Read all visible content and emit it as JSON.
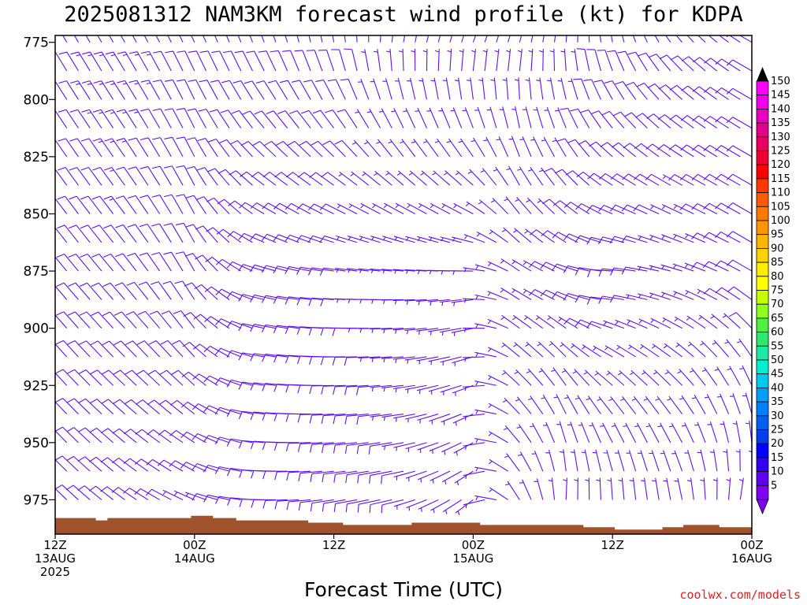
{
  "chart_data": {
    "type": "wind_barb_profile",
    "title": "2025081312 NAM3KM forecast wind profile (kt) for KDPA",
    "xlabel": "Forecast Time (UTC)",
    "credit": "coolwx.com/models",
    "y_ticks": [
      775,
      800,
      825,
      850,
      875,
      900,
      925,
      950,
      975
    ],
    "ylim": [
      772,
      990
    ],
    "x_ticks": [
      {
        "hour": 0,
        "line1": "12Z",
        "line2": "13AUG",
        "line3": "2025"
      },
      {
        "hour": 12,
        "line1": "00Z",
        "line2": "14AUG",
        "line3": ""
      },
      {
        "hour": 24,
        "line1": "12Z",
        "line2": "",
        "line3": ""
      },
      {
        "hour": 36,
        "line1": "00Z",
        "line2": "15AUG",
        "line3": ""
      },
      {
        "hour": 48,
        "line1": "12Z",
        "line2": "",
        "line3": ""
      },
      {
        "hour": 60,
        "line1": "00Z",
        "line2": "16AUG",
        "line3": ""
      }
    ],
    "xlim": [
      0,
      60
    ],
    "barb_color": "#6010f0",
    "surface_color": "#a0522d",
    "surface_pressure_mb": [
      {
        "hour": 0,
        "mb": 983
      },
      {
        "hour": 3,
        "mb": 983
      },
      {
        "hour": 3.5,
        "mb": 984
      },
      {
        "hour": 4.5,
        "mb": 983
      },
      {
        "hour": 11.5,
        "mb": 983
      },
      {
        "hour": 11.7,
        "mb": 982
      },
      {
        "hour": 13.6,
        "mb": 983
      },
      {
        "hour": 15.6,
        "mb": 984
      },
      {
        "hour": 21.8,
        "mb": 985
      },
      {
        "hour": 24.8,
        "mb": 986
      },
      {
        "hour": 30.7,
        "mb": 985
      },
      {
        "hour": 36.6,
        "mb": 986
      },
      {
        "hour": 45.5,
        "mb": 987
      },
      {
        "hour": 48.2,
        "mb": 988
      },
      {
        "hour": 52.3,
        "mb": 987
      },
      {
        "hour": 54.1,
        "mb": 986
      },
      {
        "hour": 57.2,
        "mb": 987
      },
      {
        "hour": 60,
        "mb": 987
      }
    ],
    "wind_keyframes": [
      {
        "hour": 0,
        "low": {
          "dir": 315,
          "spd": 8
        },
        "mid": {
          "dir": 320,
          "spd": 10
        },
        "high": {
          "dir": 330,
          "spd": 12
        }
      },
      {
        "hour": 6,
        "low": {
          "dir": 305,
          "spd": 8
        },
        "mid": {
          "dir": 320,
          "spd": 12
        },
        "high": {
          "dir": 330,
          "spd": 14
        }
      },
      {
        "hour": 12,
        "low": {
          "dir": 290,
          "spd": 7
        },
        "mid": {
          "dir": 330,
          "spd": 10
        },
        "high": {
          "dir": 335,
          "spd": 12
        }
      },
      {
        "hour": 18,
        "low": {
          "dir": 270,
          "spd": 8
        },
        "mid": {
          "dir": 285,
          "spd": 9
        },
        "high": {
          "dir": 340,
          "spd": 10
        }
      },
      {
        "hour": 24,
        "low": {
          "dir": 260,
          "spd": 10
        },
        "mid": {
          "dir": 275,
          "spd": 8
        },
        "high": {
          "dir": 350,
          "spd": 8
        }
      },
      {
        "hour": 30,
        "low": {
          "dir": 255,
          "spd": 8
        },
        "mid": {
          "dir": 270,
          "spd": 6
        },
        "high": {
          "dir": 10,
          "spd": 7
        }
      },
      {
        "hour": 36,
        "low": {
          "dir": 230,
          "spd": 5
        },
        "mid": {
          "dir": 265,
          "spd": 6
        },
        "high": {
          "dir": 20,
          "spd": 6
        }
      },
      {
        "hour": 40,
        "low": {
          "dir": 330,
          "spd": 6
        },
        "mid": {
          "dir": 300,
          "spd": 7
        },
        "high": {
          "dir": 15,
          "spd": 6
        }
      },
      {
        "hour": 44,
        "low": {
          "dir": 10,
          "spd": 5
        },
        "mid": {
          "dir": 290,
          "spd": 8
        },
        "high": {
          "dir": 5,
          "spd": 7
        }
      },
      {
        "hour": 48,
        "low": {
          "dir": 5,
          "spd": 6
        },
        "mid": {
          "dir": 270,
          "spd": 8
        },
        "high": {
          "dir": 350,
          "spd": 8
        }
      },
      {
        "hour": 54,
        "low": {
          "dir": 355,
          "spd": 6
        },
        "mid": {
          "dir": 285,
          "spd": 7
        },
        "high": {
          "dir": 320,
          "spd": 8
        }
      },
      {
        "hour": 60,
        "low": {
          "dir": 20,
          "spd": 6
        },
        "mid": {
          "dir": 300,
          "spd": 8
        },
        "high": {
          "dir": 300,
          "spd": 8
        }
      }
    ],
    "colorbar": {
      "labels": [
        150,
        145,
        140,
        135,
        130,
        125,
        120,
        115,
        110,
        105,
        100,
        95,
        90,
        85,
        80,
        75,
        70,
        65,
        60,
        55,
        50,
        45,
        40,
        35,
        30,
        25,
        20,
        15,
        10,
        5
      ],
      "colors": [
        "#ff00ff",
        "#f000e8",
        "#e800c0",
        "#e0008c",
        "#e80060",
        "#f00030",
        "#ff0000",
        "#ff3800",
        "#ff5a00",
        "#ff7800",
        "#ff9600",
        "#ffb400",
        "#ffd200",
        "#ffee00",
        "#ffff00",
        "#c8ff00",
        "#90ff20",
        "#50f040",
        "#30e870",
        "#20e8a8",
        "#00f0d0",
        "#00c8f0",
        "#00a0f8",
        "#0080f8",
        "#0060f0",
        "#0040e8",
        "#0000ff",
        "#3000f0",
        "#6000f0",
        "#8000f0"
      ],
      "top_arrow_color": "#000000",
      "bottom_arrow_color": "#8000f0"
    }
  }
}
